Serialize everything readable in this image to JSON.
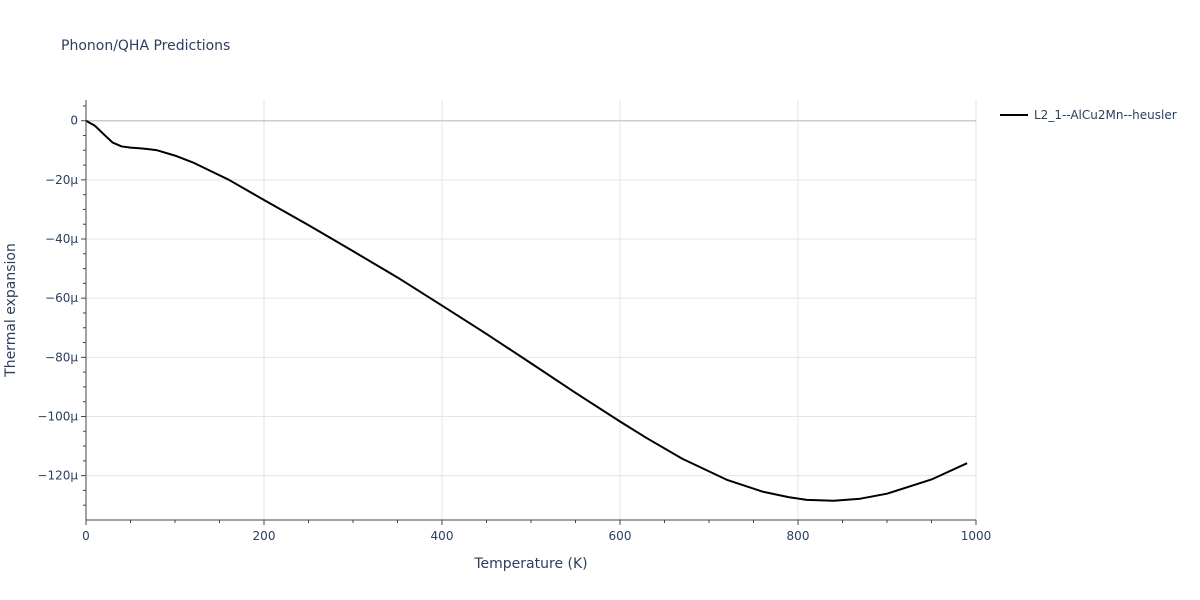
{
  "chart_data": {
    "type": "line",
    "title": "Phonon/QHA Predictions",
    "xlabel": "Temperature (K)",
    "ylabel": "Thermal expansion",
    "xlim": [
      0,
      1000
    ],
    "ylim": [
      -135,
      7
    ],
    "grid": true,
    "legend_position": "top-right",
    "x_ticks": [
      {
        "value": 0,
        "label": "0"
      },
      {
        "value": 200,
        "label": "200"
      },
      {
        "value": 400,
        "label": "400"
      },
      {
        "value": 600,
        "label": "600"
      },
      {
        "value": 800,
        "label": "800"
      },
      {
        "value": 1000,
        "label": "1000"
      }
    ],
    "y_ticks": [
      {
        "value": 0,
        "label": "0"
      },
      {
        "value": -20,
        "label": "−20μ"
      },
      {
        "value": -40,
        "label": "−40μ"
      },
      {
        "value": -60,
        "label": "−60μ"
      },
      {
        "value": -80,
        "label": "−80μ"
      },
      {
        "value": -100,
        "label": "−100μ"
      },
      {
        "value": -120,
        "label": "−120μ"
      }
    ],
    "series": [
      {
        "name": "L2_1--AlCu2Mn--heusler",
        "color": "#000000",
        "x": [
          0,
          10,
          20,
          30,
          40,
          50,
          60,
          70,
          80,
          100,
          120,
          140,
          160,
          200,
          250,
          300,
          350,
          400,
          450,
          500,
          550,
          600,
          630,
          670,
          720,
          760,
          790,
          810,
          840,
          870,
          900,
          950,
          990
        ],
        "y": [
          0,
          -1.7,
          -4.6,
          -7.4,
          -8.7,
          -9.1,
          -9.3,
          -9.6,
          -10,
          -11.8,
          -14.1,
          -17,
          -19.9,
          -26.8,
          -35.3,
          -44.1,
          -53,
          -62.5,
          -72.1,
          -82,
          -92,
          -101.7,
          -107.3,
          -114.3,
          -121.4,
          -125.4,
          -127.3,
          -128.2,
          -128.5,
          -127.8,
          -126.1,
          -121.3,
          -115.8
        ]
      }
    ]
  }
}
